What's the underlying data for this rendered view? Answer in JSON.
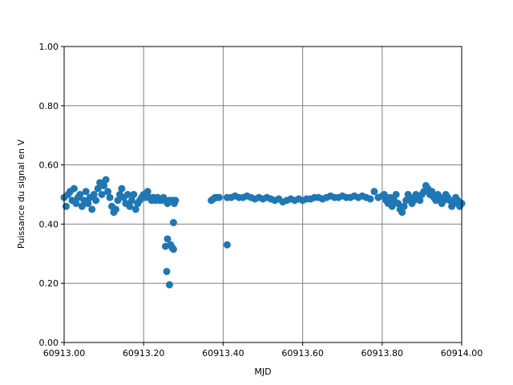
{
  "chart_data": {
    "type": "scatter",
    "xlabel": "MJD",
    "ylabel": "Puissance du signal en V",
    "color": "#1f77b4",
    "grid": true,
    "xlim": [
      60913.0,
      60914.0
    ],
    "xticks": [
      {
        "value": 60913.0,
        "label": "60913.00"
      },
      {
        "value": 60913.2,
        "label": "60913.20"
      },
      {
        "value": 60913.4,
        "label": "60913.40"
      },
      {
        "value": 60913.6,
        "label": "60913.60"
      },
      {
        "value": 60913.8,
        "label": "60913.80"
      },
      {
        "value": 60914.0,
        "label": "60914.00"
      }
    ],
    "ylim": [
      0,
      1
    ],
    "yticks": [
      {
        "value": 0,
        "label": "0.00"
      },
      {
        "value": 0.2,
        "label": "0.20"
      },
      {
        "value": 0.4,
        "label": "0.40"
      },
      {
        "value": 0.6,
        "label": "0.60"
      },
      {
        "value": 0.8,
        "label": "0.80"
      },
      {
        "value": 1,
        "label": "1.00"
      }
    ],
    "x": [
      60913.0,
      60913.005,
      60913.01,
      60913.015,
      60913.02,
      60913.025,
      60913.03,
      60913.035,
      60913.04,
      60913.045,
      60913.05,
      60913.055,
      60913.06,
      60913.065,
      60913.07,
      60913.075,
      60913.08,
      60913.085,
      60913.09,
      60913.095,
      60913.1,
      60913.105,
      60913.11,
      60913.115,
      60913.12,
      60913.125,
      60913.13,
      60913.135,
      60913.14,
      60913.145,
      60913.15,
      60913.155,
      60913.16,
      60913.165,
      60913.17,
      60913.175,
      60913.18,
      60913.185,
      60913.19,
      60913.195,
      60913.2,
      60913.205,
      60913.21,
      60913.215,
      60913.22,
      60913.225,
      60913.23,
      60913.235,
      60913.24,
      60913.245,
      60913.25,
      60913.255,
      60913.26,
      60913.265,
      60913.27,
      60913.275,
      60913.28,
      60913.255,
      60913.258,
      60913.26,
      60913.265,
      60913.268,
      60913.272,
      60913.275,
      60913.275,
      60913.277,
      60913.37,
      60913.375,
      60913.38,
      60913.385,
      60913.39,
      60913.41,
      60913.41,
      60913.42,
      60913.43,
      60913.44,
      60913.45,
      60913.46,
      60913.47,
      60913.48,
      60913.49,
      60913.5,
      60913.51,
      60913.52,
      60913.53,
      60913.54,
      60913.55,
      60913.56,
      60913.57,
      60913.58,
      60913.59,
      60913.6,
      60913.61,
      60913.62,
      60913.63,
      60913.64,
      60913.65,
      60913.66,
      60913.67,
      60913.68,
      60913.69,
      60913.7,
      60913.71,
      60913.72,
      60913.73,
      60913.74,
      60913.75,
      60913.76,
      60913.77,
      60913.78,
      60913.79,
      60913.8,
      60913.805,
      60913.81,
      60913.815,
      60913.82,
      60913.825,
      60913.83,
      60913.835,
      60913.84,
      60913.845,
      60913.85,
      60913.855,
      60913.86,
      60913.865,
      60913.87,
      60913.875,
      60913.88,
      60913.885,
      60913.89,
      60913.895,
      60913.9,
      60913.905,
      60913.91,
      60913.915,
      60913.92,
      60913.925,
      60913.93,
      60913.935,
      60913.94,
      60913.945,
      60913.95,
      60913.955,
      60913.96,
      60913.965,
      60913.97,
      60913.975,
      60913.98,
      60913.985,
      60913.99,
      60913.995,
      60914.0
    ],
    "values": [
      0.49,
      0.46,
      0.5,
      0.51,
      0.48,
      0.52,
      0.47,
      0.49,
      0.5,
      0.46,
      0.48,
      0.51,
      0.47,
      0.49,
      0.45,
      0.5,
      0.48,
      0.52,
      0.54,
      0.5,
      0.53,
      0.55,
      0.51,
      0.49,
      0.46,
      0.44,
      0.45,
      0.48,
      0.5,
      0.52,
      0.49,
      0.47,
      0.5,
      0.46,
      0.48,
      0.5,
      0.45,
      0.47,
      0.48,
      0.49,
      0.5,
      0.49,
      0.51,
      0.49,
      0.48,
      0.49,
      0.48,
      0.49,
      0.48,
      0.48,
      0.49,
      0.48,
      0.47,
      0.48,
      0.48,
      0.48,
      0.48,
      0.325,
      0.24,
      0.35,
      0.195,
      0.33,
      0.32,
      0.315,
      0.405,
      0.47,
      0.48,
      0.485,
      0.49,
      0.49,
      0.49,
      0.33,
      0.49,
      0.49,
      0.495,
      0.49,
      0.49,
      0.495,
      0.49,
      0.485,
      0.49,
      0.485,
      0.49,
      0.485,
      0.48,
      0.485,
      0.475,
      0.48,
      0.485,
      0.48,
      0.485,
      0.48,
      0.485,
      0.485,
      0.49,
      0.49,
      0.485,
      0.49,
      0.495,
      0.49,
      0.49,
      0.495,
      0.49,
      0.49,
      0.495,
      0.49,
      0.495,
      0.49,
      0.485,
      0.51,
      0.49,
      0.495,
      0.5,
      0.48,
      0.47,
      0.49,
      0.46,
      0.48,
      0.5,
      0.47,
      0.45,
      0.44,
      0.46,
      0.48,
      0.5,
      0.49,
      0.47,
      0.48,
      0.5,
      0.49,
      0.48,
      0.5,
      0.51,
      0.53,
      0.52,
      0.5,
      0.51,
      0.49,
      0.48,
      0.5,
      0.49,
      0.47,
      0.48,
      0.5,
      0.49,
      0.48,
      0.46,
      0.47,
      0.49,
      0.48,
      0.46,
      0.47
    ]
  }
}
